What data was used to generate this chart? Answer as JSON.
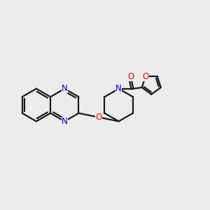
{
  "background_color": "#ececec",
  "bond_color": "#1a1a1a",
  "nitrogen_color": "#0000ff",
  "oxygen_color": "#ff0000",
  "line_width": 1.6,
  "figsize": [
    3.0,
    3.0
  ],
  "dpi": 100,
  "xlim": [
    0,
    12
  ],
  "ylim": [
    0,
    10
  ]
}
